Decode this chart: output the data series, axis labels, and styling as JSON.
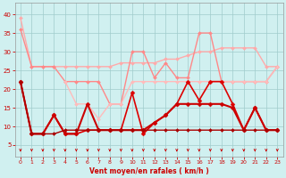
{
  "xlabel": "Vent moyen/en rafales ( km/h )",
  "x": [
    0,
    1,
    2,
    3,
    4,
    5,
    6,
    7,
    8,
    9,
    10,
    11,
    12,
    13,
    14,
    15,
    16,
    17,
    18,
    19,
    20,
    21,
    22,
    23
  ],
  "series": [
    {
      "name": "light_pink_top",
      "color": "#ffaaaa",
      "lw": 1.0,
      "marker": "D",
      "markersize": 2.0,
      "values": [
        39,
        26,
        26,
        26,
        26,
        26,
        26,
        26,
        26,
        27,
        27,
        27,
        27,
        28,
        28,
        29,
        30,
        30,
        31,
        31,
        31,
        31,
        26,
        26
      ]
    },
    {
      "name": "medium_pink_volatile",
      "color": "#ff8888",
      "lw": 1.0,
      "marker": "D",
      "markersize": 2.0,
      "values": [
        36,
        26,
        26,
        26,
        22,
        22,
        22,
        22,
        16,
        16,
        30,
        30,
        23,
        27,
        23,
        23,
        35,
        35,
        22,
        22,
        22,
        22,
        22,
        26
      ]
    },
    {
      "name": "medium_pink_lower",
      "color": "#ffbbbb",
      "lw": 1.0,
      "marker": "D",
      "markersize": 2.0,
      "values": [
        null,
        null,
        null,
        null,
        22,
        16,
        16,
        12,
        16,
        16,
        22,
        22,
        22,
        22,
        22,
        22,
        22,
        22,
        22,
        22,
        22,
        22,
        22,
        26
      ]
    },
    {
      "name": "dark_red_spiky",
      "color": "#dd0000",
      "lw": 1.2,
      "marker": "D",
      "markersize": 2.5,
      "values": [
        22,
        8,
        8,
        13,
        8,
        8,
        9,
        9,
        9,
        9,
        19,
        8,
        11,
        13,
        16,
        22,
        17,
        22,
        22,
        16,
        9,
        15,
        9,
        9
      ]
    },
    {
      "name": "dark_red_flat",
      "color": "#cc0000",
      "lw": 1.5,
      "marker": "D",
      "markersize": 2.5,
      "values": [
        22,
        8,
        8,
        13,
        8,
        8,
        16,
        9,
        9,
        9,
        9,
        9,
        11,
        13,
        16,
        16,
        16,
        16,
        16,
        15,
        9,
        15,
        9,
        9
      ]
    },
    {
      "name": "dark_red_bottom",
      "color": "#aa0000",
      "lw": 1.0,
      "marker": "D",
      "markersize": 2.0,
      "values": [
        22,
        8,
        8,
        8,
        9,
        9,
        9,
        9,
        9,
        9,
        9,
        9,
        9,
        9,
        9,
        9,
        9,
        9,
        9,
        9,
        9,
        9,
        9,
        9
      ]
    }
  ],
  "ylim": [
    2,
    43
  ],
  "yticks": [
    5,
    10,
    15,
    20,
    25,
    30,
    35,
    40
  ],
  "bg_color": "#d0f0f0",
  "grid_color": "#a0cccc",
  "text_color": "#cc0000",
  "arrow_color": "#cc0000"
}
